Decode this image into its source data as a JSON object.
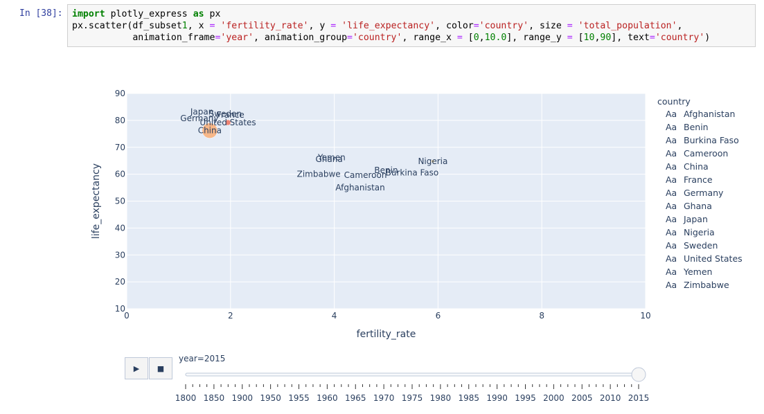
{
  "notebook": {
    "prompt": "In [38]:",
    "code_line1": "px.scatter(df_subset1, x = 'fertility_rate', y = 'life_expectancy', color='country', size = 'total_population',",
    "code_line2": "           animation_frame='year', animation_group='country', range_x = [0,10.0], range_y = [10,90], text='country')",
    "code_import_kw1": "import",
    "code_import_mod": " plotly_express ",
    "code_import_kw2": "as",
    "code_import_alias": " px"
  },
  "chart_data": {
    "type": "scatter",
    "xlabel": "fertility_rate",
    "ylabel": "life_expectancy",
    "xlim": [
      0,
      10
    ],
    "ylim": [
      10,
      90
    ],
    "x_ticks": [
      0,
      2,
      4,
      6,
      8,
      10
    ],
    "y_ticks": [
      10,
      20,
      30,
      40,
      50,
      60,
      70,
      80,
      90
    ],
    "grid": true,
    "legend_title": "country",
    "legend_position": "right",
    "points": [
      {
        "country": "Afghanistan",
        "x": 4.5,
        "y": 55.0,
        "size": 0,
        "color": "#636efa"
      },
      {
        "country": "Benin",
        "x": 5.0,
        "y": 61.5,
        "size": 0,
        "color": "#ef553b"
      },
      {
        "country": "Burkina Faso",
        "x": 5.5,
        "y": 60.5,
        "size": 0,
        "color": "#00cc96"
      },
      {
        "country": "Cameroon",
        "x": 4.6,
        "y": 59.7,
        "size": 0,
        "color": "#ab63fa"
      },
      {
        "country": "China",
        "x": 1.6,
        "y": 76.2,
        "size": 11,
        "color": "#ffa15a"
      },
      {
        "country": "France",
        "x": 2.0,
        "y": 82.0,
        "size": 0,
        "color": "#19d3f3"
      },
      {
        "country": "Germany",
        "x": 1.4,
        "y": 80.7,
        "size": 0,
        "color": "#ff6692"
      },
      {
        "country": "Ghana",
        "x": 3.9,
        "y": 65.5,
        "size": 0,
        "color": "#b6e880"
      },
      {
        "country": "Japan",
        "x": 1.45,
        "y": 83.2,
        "size": 0,
        "color": "#ff97ff"
      },
      {
        "country": "Nigeria",
        "x": 5.9,
        "y": 64.8,
        "size": 2,
        "color": "#fecb52"
      },
      {
        "country": "Sweden",
        "x": 1.9,
        "y": 82.4,
        "size": 0,
        "color": "#636efa"
      },
      {
        "country": "United States",
        "x": 1.95,
        "y": 79.2,
        "size": 4,
        "color": "#ef553b"
      },
      {
        "country": "Yemen",
        "x": 3.95,
        "y": 66.2,
        "size": 0,
        "color": "#00cc96"
      },
      {
        "country": "Zimbabwe",
        "x": 3.7,
        "y": 60.0,
        "size": 0,
        "color": "#ab63fa"
      }
    ],
    "legend_entries": [
      "Afghanistan",
      "Benin",
      "Burkina Faso",
      "Cameroon",
      "China",
      "France",
      "Germany",
      "Ghana",
      "Japan",
      "Nigeria",
      "Sweden",
      "United States",
      "Yemen",
      "Zimbabwe"
    ],
    "legend_colors": [
      "#636efa",
      "#ef553b",
      "#00cc96",
      "#ab63fa",
      "#ffa15a",
      "#19d3f3",
      "#ff6692",
      "#b6e880",
      "#ff97ff",
      "#fecb52",
      "#636efa",
      "#ef553b",
      "#00cc96",
      "#ab63fa"
    ],
    "legend_glyph": "Aa"
  },
  "slider": {
    "current_label": "year=2015",
    "ticks": [
      "1800",
      "1850",
      "1900",
      "1950",
      "1955",
      "1960",
      "1965",
      "1970",
      "1975",
      "1980",
      "1985",
      "1990",
      "1995",
      "2000",
      "2005",
      "2010",
      "2015"
    ],
    "value_fraction": 1.0,
    "play_symbol": "▶",
    "stop_symbol": "■"
  },
  "colors": {
    "plot_bg": "#e5ecf6",
    "grid": "#ffffff",
    "text": "#2a3f5f"
  }
}
